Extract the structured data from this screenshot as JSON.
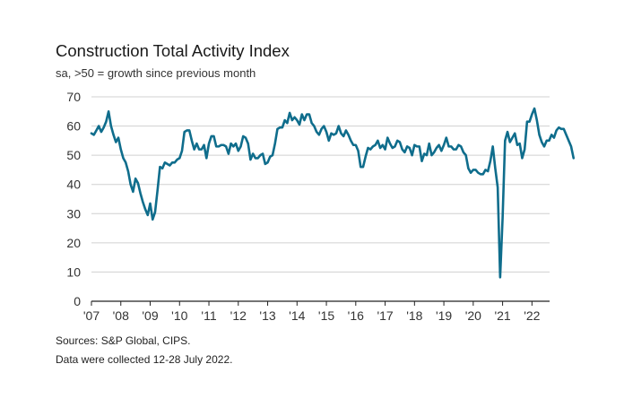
{
  "chart_data": {
    "type": "line",
    "title": "Construction Total Activity Index",
    "subtitle": "sa, >50 = growth since previous month",
    "x_tick_labels": [
      "'07",
      "'08",
      "'09",
      "'10",
      "'11",
      "'12",
      "'13",
      "'14",
      "'15",
      "'16",
      "'17",
      "'18",
      "'19",
      "'20",
      "'21",
      "'22"
    ],
    "y_ticks": [
      0,
      10,
      20,
      30,
      40,
      50,
      60,
      70
    ],
    "ylim": [
      0,
      70
    ],
    "x_start": "2007-01",
    "line_color": "#0f6d8c",
    "grid": "horizontal",
    "series": [
      {
        "values": [
          57.5,
          57,
          58.5,
          60,
          58,
          59.5,
          61.5,
          65,
          60,
          57,
          54.5,
          56,
          52,
          49,
          47.5,
          44.5,
          40,
          37.5,
          42,
          40.5,
          37,
          34,
          31.5,
          29.5,
          33.5,
          28,
          30.5,
          38,
          46,
          45.5,
          47.5,
          47,
          46.5,
          47.5,
          47.5,
          48.5,
          49,
          51.5,
          58,
          58.5,
          58.5,
          55,
          52,
          54,
          52,
          52,
          53.5,
          49,
          54,
          56.5,
          56.5,
          53,
          53,
          53.5,
          53.5,
          53,
          50.5,
          54,
          53,
          54,
          51.5,
          53,
          56.5,
          56,
          54,
          48.5,
          50.5,
          49,
          49,
          50,
          50.5,
          47,
          47.5,
          49.5,
          50,
          54,
          59,
          59.5,
          59.5,
          62,
          61,
          64.5,
          62,
          63,
          62,
          60.5,
          64,
          62,
          64,
          64,
          61,
          60,
          58,
          57,
          59,
          60,
          58,
          55,
          57.5,
          57,
          57.5,
          60,
          57.5,
          56.5,
          58.5,
          57,
          55,
          53.5,
          53.5,
          51.5,
          46,
          46,
          49.5,
          52.5,
          52,
          53,
          53.5,
          55,
          52.5,
          53.5,
          52,
          56,
          54,
          52.5,
          53,
          55,
          54.5,
          52,
          51,
          53,
          52.5,
          50,
          53.5,
          53,
          53,
          48,
          50.5,
          50,
          54,
          50,
          51,
          52.5,
          53.5,
          51.5,
          53.5,
          56,
          53,
          53,
          52,
          52,
          53.5,
          53,
          51,
          50,
          45.5,
          44,
          45,
          45,
          44,
          43.5,
          43.5,
          45,
          44.5,
          48,
          53,
          45.5,
          39,
          8.2,
          28.5,
          55,
          58,
          54.5,
          56,
          57.5,
          53.5,
          54,
          49,
          52,
          61.5,
          61.5,
          64,
          66,
          62,
          57,
          54.5,
          53,
          55,
          55,
          57,
          56,
          58.5,
          59.5,
          59,
          59,
          57,
          55,
          53,
          49
        ]
      }
    ]
  },
  "notes": {
    "sources": "Sources: S&P Global, CIPS.",
    "collected": "Data were collected 12-28 July 2022."
  }
}
